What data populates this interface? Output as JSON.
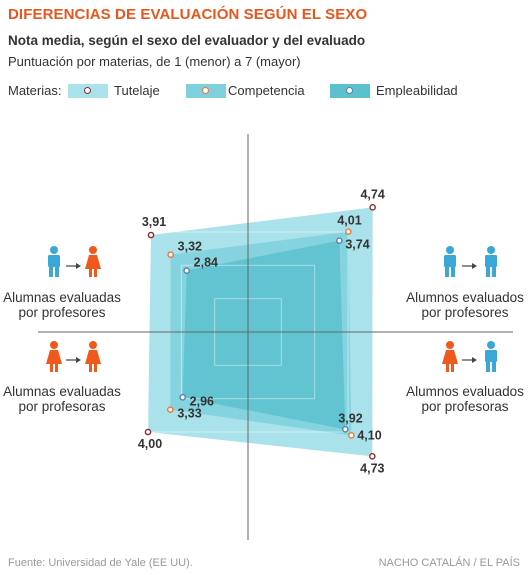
{
  "header": {
    "title": "DIFERENCIAS DE EVALUACIÓN SEGÚN EL SEXO",
    "subtitle": "Nota media, según el sexo del evaluador y del evaluado",
    "description": "Puntuación por materias, de 1 (menor) a 7 (mayor)"
  },
  "legend": {
    "label": "Materias:",
    "items": [
      {
        "name": "Tutelaje",
        "color": "#a9e2ea"
      },
      {
        "name": "Competencia",
        "color": "#7fd0dc"
      },
      {
        "name": "Empleabilidad",
        "color": "#5cc0cf"
      }
    ]
  },
  "quadrants": {
    "top_left": "Alumnas evaluadas por profesores",
    "top_right": "Alumnos evaluados por profesores",
    "bottom_left": "Alumnas evaluadas por profesoras",
    "bottom_right": "Alumnos evaluados por profesoras"
  },
  "colors": {
    "male": "#3aa7d6",
    "female": "#ef5a1c",
    "title": "#e8561e",
    "marker_outline_tutelaje": "#8a2a2a",
    "marker_outline_competencia": "#e8763a",
    "marker_outline_empleabilidad": "#5a7fa8"
  },
  "chart_data": {
    "type": "radar",
    "scale": [
      1,
      7
    ],
    "axes": [
      "Alumnas evaluadas por profesores",
      "Alumnos evaluados por profesores",
      "Alumnos evaluados por profesoras",
      "Alumnas evaluadas por profesoras"
    ],
    "series": [
      {
        "name": "Tutelaje",
        "values": [
          3.91,
          4.74,
          4.73,
          4.0
        ],
        "labels": [
          "3,91",
          "4,74",
          "4,73",
          "4,00"
        ]
      },
      {
        "name": "Competencia",
        "values": [
          3.32,
          4.01,
          4.1,
          3.33
        ],
        "labels": [
          "3,32",
          "4,01",
          "4,10",
          "3,33"
        ]
      },
      {
        "name": "Empleabilidad",
        "values": [
          2.84,
          3.74,
          3.92,
          2.96
        ],
        "labels": [
          "2,84",
          "3,74",
          "3,92",
          "2,96"
        ]
      }
    ]
  },
  "footer": {
    "source": "Fuente: Universidad de Yale (EE UU).",
    "credit": "NACHO CATALÁN / EL PAÍS"
  }
}
